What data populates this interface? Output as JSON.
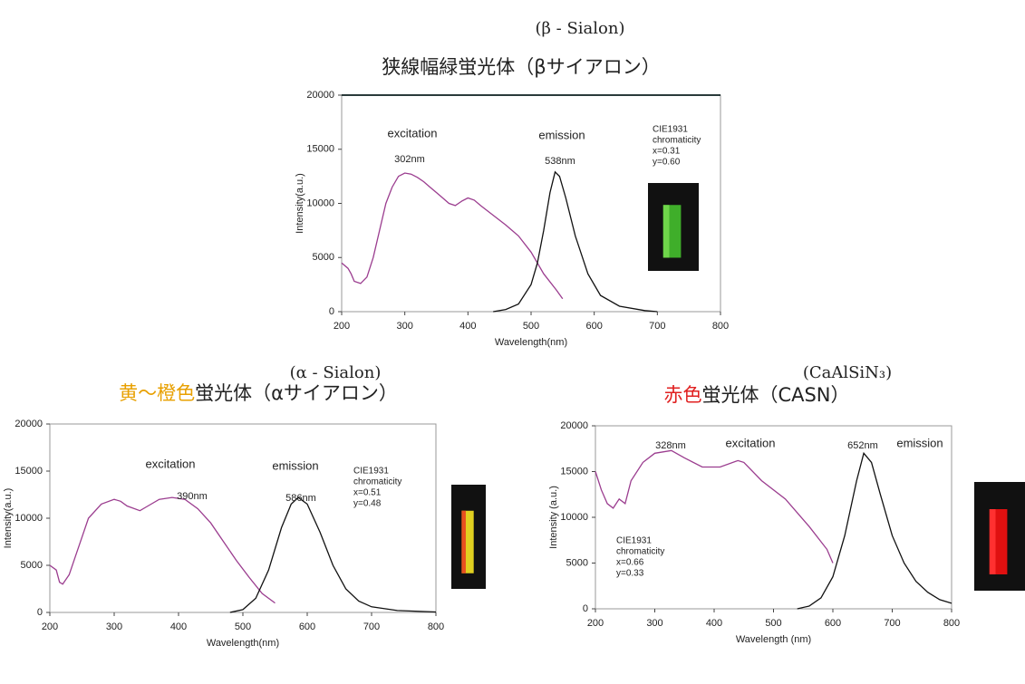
{
  "chart_data": [
    {
      "type": "line",
      "subtitle": "(β - Sialon)",
      "title": [
        {
          "text": "狭線幅緑蛍光体（βサイアロン）",
          "color": "#222222"
        }
      ],
      "x_label": "Wavelength(nm)",
      "y_label": "Intensity(a.u.)",
      "xlim": [
        200,
        800
      ],
      "xticks": [
        200,
        300,
        400,
        500,
        600,
        700,
        800
      ],
      "ylim": [
        0,
        20000
      ],
      "yticks": [
        0,
        5000,
        10000,
        15000,
        20000
      ],
      "annotations": [
        "excitation",
        "302nm",
        "emission",
        "538nm"
      ],
      "cie": [
        "CIE1931",
        "chromaticity",
        "x=0.31",
        "y=0.60"
      ],
      "series": [
        {
          "name": "excitation",
          "color": "#9b3d8f",
          "x": [
            200,
            210,
            215,
            220,
            230,
            240,
            250,
            260,
            270,
            280,
            290,
            300,
            310,
            320,
            330,
            340,
            350,
            360,
            370,
            380,
            390,
            400,
            410,
            420,
            440,
            460,
            480,
            500,
            520,
            540,
            550
          ],
          "values": [
            4500,
            4000,
            3500,
            2800,
            2600,
            3200,
            5000,
            7500,
            10000,
            11500,
            12500,
            12800,
            12700,
            12400,
            12000,
            11500,
            11000,
            10500,
            10000,
            9800,
            10200,
            10500,
            10300,
            9800,
            8900,
            8000,
            7000,
            5500,
            3500,
            2000,
            1200
          ]
        },
        {
          "name": "emission",
          "color": "#111111",
          "x": [
            440,
            460,
            480,
            500,
            510,
            520,
            530,
            538,
            545,
            555,
            570,
            590,
            610,
            640,
            680,
            700
          ],
          "values": [
            0,
            200,
            700,
            2500,
            4500,
            7500,
            11000,
            12900,
            12500,
            10500,
            7000,
            3500,
            1500,
            500,
            100,
            0
          ]
        }
      ]
    },
    {
      "type": "line",
      "subtitle": "(α - Sialon)",
      "title": [
        {
          "text": "黄～橙色",
          "color": "#e8a000"
        },
        {
          "text": "蛍光体（αサイアロン）",
          "color": "#222222"
        }
      ],
      "x_label": "Wavelength(nm)",
      "y_label": "Intensity(a.u.)",
      "xlim": [
        200,
        800
      ],
      "xticks": [
        200,
        300,
        400,
        500,
        600,
        700,
        800
      ],
      "ylim": [
        0,
        20000
      ],
      "yticks": [
        0,
        5000,
        10000,
        15000,
        20000
      ],
      "annotations": [
        "excitation",
        "390nm",
        "emission",
        "586nm"
      ],
      "cie": [
        "CIE1931",
        "chromaticity",
        "x=0.51",
        "y=0.48"
      ],
      "series": [
        {
          "name": "excitation",
          "color": "#9b3d8f",
          "x": [
            200,
            210,
            215,
            220,
            230,
            240,
            250,
            260,
            280,
            300,
            310,
            320,
            340,
            350,
            370,
            390,
            410,
            430,
            450,
            470,
            490,
            510,
            530,
            550
          ],
          "values": [
            5000,
            4500,
            3200,
            3000,
            4000,
            6000,
            8000,
            10000,
            11500,
            12000,
            11800,
            11300,
            10800,
            11200,
            12000,
            12200,
            12000,
            11000,
            9500,
            7500,
            5500,
            3700,
            2000,
            1000
          ]
        },
        {
          "name": "emission",
          "color": "#111111",
          "x": [
            480,
            500,
            520,
            540,
            560,
            575,
            586,
            600,
            620,
            640,
            660,
            680,
            700,
            740,
            800
          ],
          "values": [
            0,
            300,
            1500,
            4500,
            9000,
            11500,
            12200,
            11500,
            8500,
            5000,
            2500,
            1200,
            600,
            200,
            50
          ]
        }
      ]
    },
    {
      "type": "line",
      "subtitle": "(CaAlSiN₃)",
      "title": [
        {
          "text": "赤色",
          "color": "#e02020"
        },
        {
          "text": "蛍光体（CASN）",
          "color": "#222222"
        }
      ],
      "x_label": "Wavelength (nm)",
      "y_label": "Intensity (a.u.)",
      "xlim": [
        200,
        800
      ],
      "xticks": [
        200,
        300,
        400,
        500,
        600,
        700,
        800
      ],
      "ylim": [
        0,
        20000
      ],
      "yticks": [
        0,
        5000,
        10000,
        15000,
        20000
      ],
      "annotations": [
        "328nm",
        "excitation",
        "652nm",
        "emission"
      ],
      "cie": [
        "CIE1931",
        "chromaticity",
        "x=0.66",
        "y=0.33"
      ],
      "series": [
        {
          "name": "excitation",
          "color": "#9b3d8f",
          "x": [
            200,
            210,
            220,
            230,
            240,
            250,
            260,
            280,
            300,
            328,
            350,
            380,
            410,
            440,
            450,
            480,
            520,
            560,
            590,
            600
          ],
          "values": [
            15000,
            13000,
            11500,
            11000,
            12000,
            11500,
            14000,
            16000,
            17000,
            17300,
            16500,
            15500,
            15500,
            16200,
            16000,
            14000,
            12000,
            9000,
            6500,
            5000
          ]
        },
        {
          "name": "emission",
          "color": "#111111",
          "x": [
            540,
            560,
            580,
            600,
            620,
            640,
            652,
            665,
            680,
            700,
            720,
            740,
            760,
            780,
            800
          ],
          "values": [
            0,
            300,
            1200,
            3500,
            8000,
            14000,
            17000,
            16000,
            12500,
            8000,
            5000,
            3000,
            1800,
            1000,
            600
          ]
        }
      ]
    }
  ]
}
